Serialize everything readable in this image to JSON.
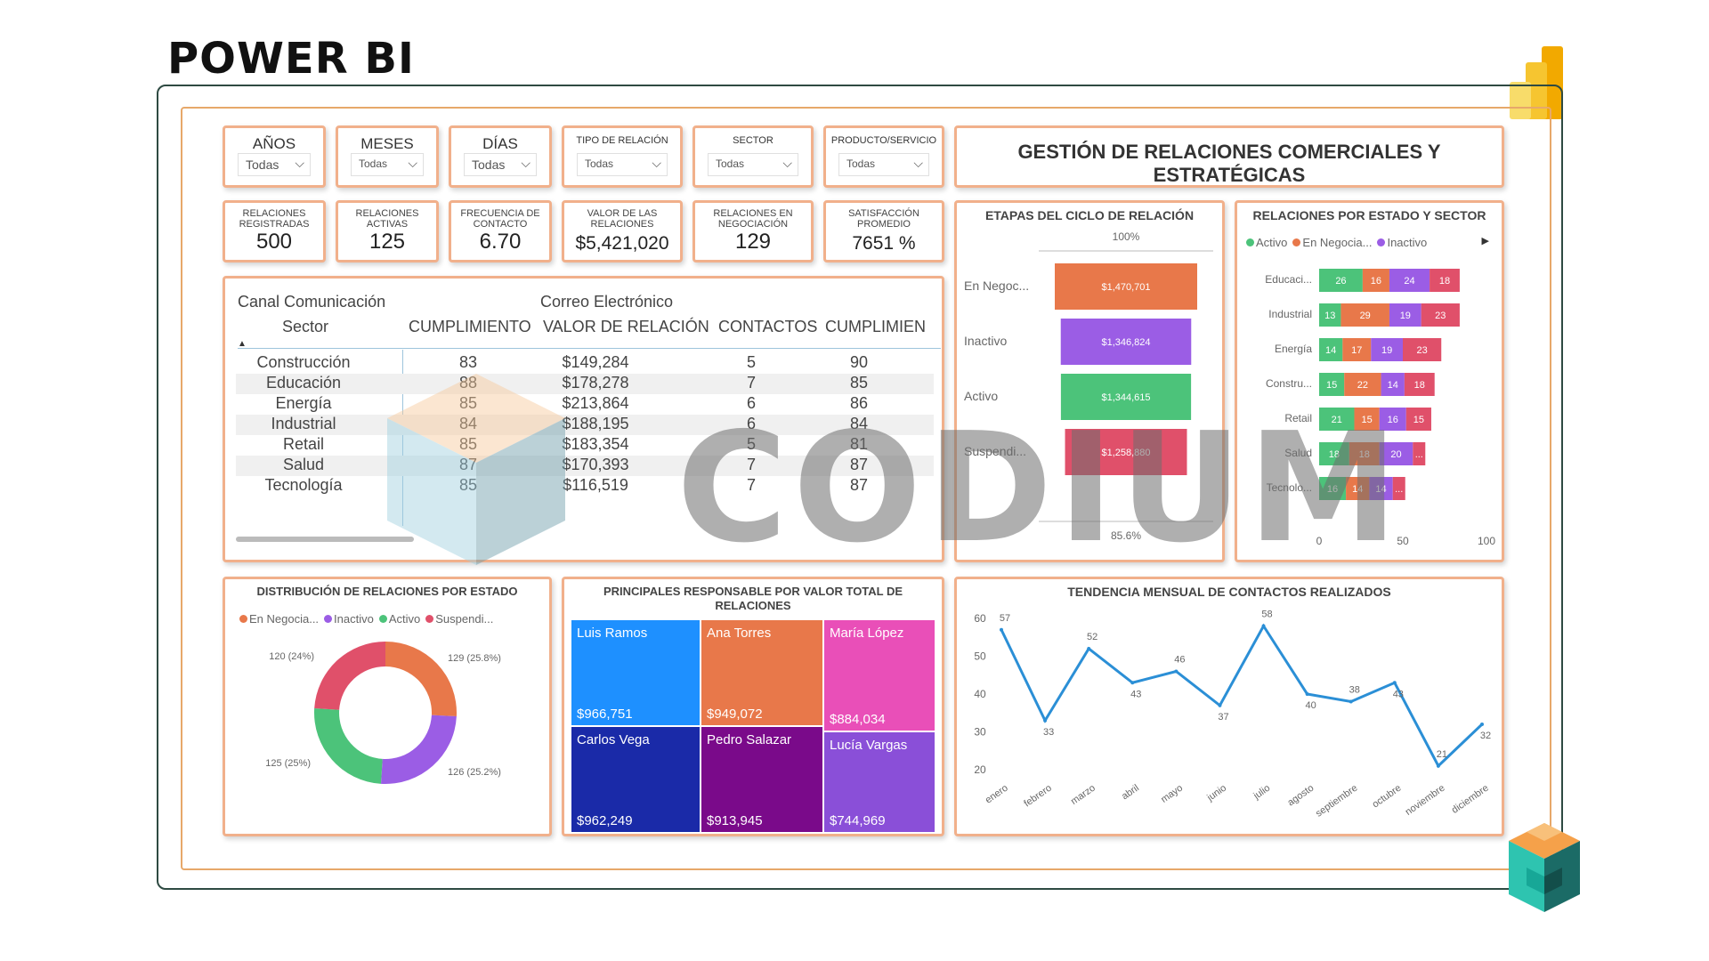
{
  "page_title": "POWER BI",
  "slicers": [
    {
      "label": "AÑOS",
      "value": "Todas"
    },
    {
      "label": "MESES",
      "value": "Todas"
    },
    {
      "label": "DÍAS",
      "value": "Todas"
    },
    {
      "label": "TIPO DE RELACIÓN",
      "value": "Todas"
    },
    {
      "label": "SECTOR",
      "value": "Todas"
    },
    {
      "label": "PRODUCTO/SERVICIO",
      "value": "Todas"
    }
  ],
  "dashboard_title": "GESTIÓN DE RELACIONES COMERCIALES Y ESTRATÉGICAS",
  "kpis": [
    {
      "label": "RELACIONES REGISTRADAS",
      "value": "500"
    },
    {
      "label": "RELACIONES ACTIVAS",
      "value": "125"
    },
    {
      "label": "FRECUENCIA DE CONTACTO",
      "value": "6.70"
    },
    {
      "label": "VALOR DE LAS RELACIONES",
      "value": "$5,421,020"
    },
    {
      "label": "RELACIONES EN NEGOCIACIÓN",
      "value": "129"
    },
    {
      "label": "SATISFACCIÓN PROMEDIO",
      "value": "7651 %"
    }
  ],
  "table": {
    "header_group_label": "Canal Comunicación",
    "header_group_value": "Correo Electrónico",
    "columns": [
      "Sector",
      "CUMPLIMIENTO",
      "VALOR DE RELACIÓN",
      "CONTACTOS",
      "CUMPLIMIEN"
    ],
    "rows": [
      [
        "Construcción",
        "83",
        "$149,284",
        "5",
        "90"
      ],
      [
        "Educación",
        "88",
        "$178,278",
        "7",
        "85"
      ],
      [
        "Energía",
        "85",
        "$213,864",
        "6",
        "86"
      ],
      [
        "Industrial",
        "84",
        "$188,195",
        "6",
        "84"
      ],
      [
        "Retail",
        "85",
        "$183,354",
        "5",
        "81"
      ],
      [
        "Salud",
        "87",
        "$170,393",
        "7",
        "87"
      ],
      [
        "Tecnología",
        "85",
        "$116,519",
        "7",
        "87"
      ]
    ]
  },
  "funnel": {
    "title": "ETAPAS DEL CICLO DE RELACIÓN",
    "top_label": "100%",
    "bottom_label": "85.6%",
    "stages": [
      {
        "name": "En Negoc...",
        "value": "$1,470,701",
        "share": 1.0,
        "color": "#e8784a"
      },
      {
        "name": "Inactivo",
        "value": "$1,346,824",
        "share": 0.916,
        "color": "#9b5de5"
      },
      {
        "name": "Activo",
        "value": "$1,344,615",
        "share": 0.914,
        "color": "#4cc37a"
      },
      {
        "name": "Suspendi...",
        "value": "$1,258,880",
        "share": 0.856,
        "color": "#e0506a"
      }
    ]
  },
  "stacked": {
    "title": "RELACIONES POR ESTADO Y SECTOR",
    "legend": [
      {
        "name": "Activo",
        "color": "#4cc37a"
      },
      {
        "name": "En Negocia...",
        "color": "#e8784a"
      },
      {
        "name": "Inactivo",
        "color": "#9b5de5"
      }
    ],
    "axis_ticks": [
      "0",
      "50",
      "100"
    ],
    "rows": [
      {
        "label": "Educaci...",
        "values": [
          "26",
          "16",
          "24",
          "18"
        ]
      },
      {
        "label": "Industrial",
        "values": [
          "13",
          "29",
          "19",
          "23"
        ]
      },
      {
        "label": "Energía",
        "values": [
          "14",
          "17",
          "19",
          "23"
        ]
      },
      {
        "label": "Constru...",
        "values": [
          "15",
          "22",
          "14",
          "18"
        ]
      },
      {
        "label": "Retail",
        "values": [
          "21",
          "15",
          "16",
          "15"
        ]
      },
      {
        "label": "Salud",
        "values": [
          "18",
          "18",
          "20",
          "..."
        ]
      },
      {
        "label": "Tecnolo...",
        "values": [
          "16",
          "14",
          "14",
          "..."
        ]
      }
    ],
    "colors": [
      "#4cc37a",
      "#e8784a",
      "#9b5de5",
      "#e0506a"
    ]
  },
  "donut": {
    "title": "DISTRIBUCIÓN DE RELACIONES POR ESTADO",
    "legend": [
      {
        "name": "En Negocia...",
        "color": "#e8784a"
      },
      {
        "name": "Inactivo",
        "color": "#9b5de5"
      },
      {
        "name": "Activo",
        "color": "#4cc37a"
      },
      {
        "name": "Suspendi...",
        "color": "#e0506a"
      }
    ],
    "slices": [
      {
        "name": "En Negociación",
        "value": 129,
        "label": "129 (25.8%)",
        "color": "#e8784a"
      },
      {
        "name": "Inactivo",
        "value": 126,
        "label": "126 (25.2%)",
        "color": "#9b5de5"
      },
      {
        "name": "Activo",
        "value": 125,
        "label": "125 (25%)",
        "color": "#4cc37a"
      },
      {
        "name": "Suspendido",
        "value": 120,
        "label": "120 (24%)",
        "color": "#e0506a"
      }
    ]
  },
  "treemap": {
    "title": "PRINCIPALES RESPONSABLE POR VALOR TOTAL DE RELACIONES",
    "items": [
      {
        "name": "Luis Ramos",
        "value": "$966,751",
        "color": "#1e90ff"
      },
      {
        "name": "Ana Torres",
        "value": "$949,072",
        "color": "#e8784a"
      },
      {
        "name": "María López",
        "value": "$884,034",
        "color": "#e94fb8"
      },
      {
        "name": "Carlos Vega",
        "value": "$962,249",
        "color": "#1a2aa8"
      },
      {
        "name": "Pedro Salazar",
        "value": "$913,945",
        "color": "#7a0a8a"
      },
      {
        "name": "Lucía Vargas",
        "value": "$744,969",
        "color": "#8a4fd8"
      }
    ]
  },
  "chart_data": {
    "type": "line",
    "title": "TENDENCIA MENSUAL DE CONTACTOS REALIZADOS",
    "categories": [
      "enero",
      "febrero",
      "marzo",
      "abril",
      "mayo",
      "junio",
      "julio",
      "agosto",
      "septiembre",
      "octubre",
      "noviembre",
      "diciembre"
    ],
    "values": [
      57,
      33,
      52,
      43,
      46,
      37,
      58,
      40,
      38,
      43,
      21,
      32
    ],
    "ylim": [
      20,
      60
    ],
    "yticks": [
      "60",
      "50",
      "40",
      "30",
      "20"
    ],
    "color": "#2b8fd6"
  },
  "watermark": "CODIUM"
}
